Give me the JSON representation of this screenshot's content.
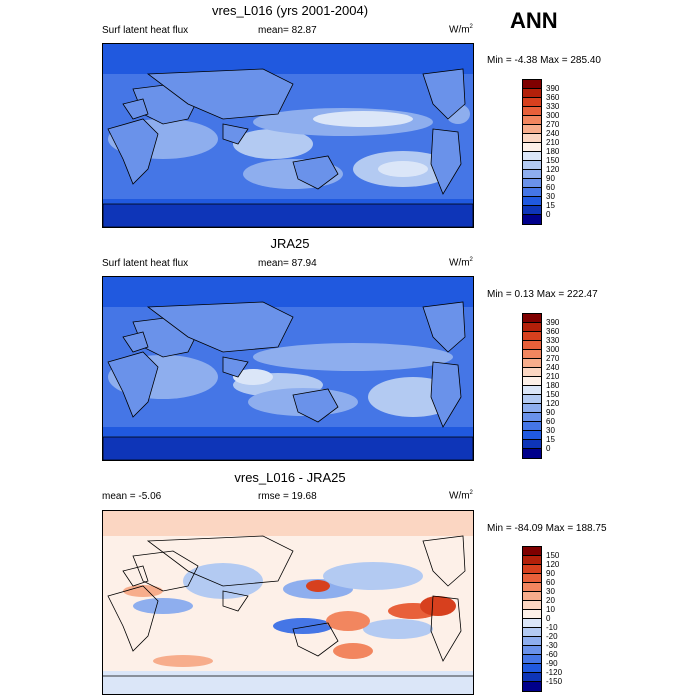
{
  "season": "ANN",
  "panels": [
    {
      "title": "vres_L016 (yrs 2001-2004)",
      "left_label": "Surf latent heat flux",
      "mid_label": "mean=  82.87",
      "units": "W/m",
      "units_sup": "2",
      "minmax": "Min =  -4.38 Max = 285.40",
      "colorbar": {
        "labels": [
          "390",
          "360",
          "330",
          "300",
          "270",
          "240",
          "210",
          "180",
          "150",
          "120",
          "90",
          "60",
          "30",
          "15",
          "0"
        ],
        "colors": [
          "#7f0000",
          "#b3200a",
          "#d7401e",
          "#e8603a",
          "#f2865f",
          "#f7ad8c",
          "#fbd6c2",
          "#fdf0e8",
          "#dbe6f8",
          "#b3caf2",
          "#8eaeee",
          "#6a92ea",
          "#4576e6",
          "#2059df",
          "#0e35b8",
          "#00008b"
        ]
      }
    },
    {
      "title": "JRA25",
      "left_label": "Surf latent heat flux",
      "mid_label": "mean=  87.94",
      "units": "W/m",
      "units_sup": "2",
      "minmax": "Min =   0.13 Max = 222.47",
      "colorbar": {
        "labels": [
          "390",
          "360",
          "330",
          "300",
          "270",
          "240",
          "210",
          "180",
          "150",
          "120",
          "90",
          "60",
          "30",
          "15",
          "0"
        ],
        "colors": [
          "#7f0000",
          "#b3200a",
          "#d7401e",
          "#e8603a",
          "#f2865f",
          "#f7ad8c",
          "#fbd6c2",
          "#fdf0e8",
          "#dbe6f8",
          "#b3caf2",
          "#8eaeee",
          "#6a92ea",
          "#4576e6",
          "#2059df",
          "#0e35b8",
          "#00008b"
        ]
      }
    },
    {
      "title": "vres_L016 - JRA25",
      "left_label": "mean =  -5.06",
      "mid_label": "rmse =  19.68",
      "units": "W/m",
      "units_sup": "2",
      "minmax": "Min = -84.09 Max = 188.75",
      "colorbar": {
        "labels": [
          "150",
          "120",
          "90",
          "60",
          "30",
          "20",
          "10",
          "0",
          "-10",
          "-20",
          "-30",
          "-60",
          "-90",
          "-120",
          "-150"
        ],
        "colors": [
          "#7f0000",
          "#b3200a",
          "#d7401e",
          "#e8603a",
          "#f2865f",
          "#f7ad8c",
          "#fbd6c2",
          "#fdf0e8",
          "#dbe6f8",
          "#b3caf2",
          "#8eaeee",
          "#6a92ea",
          "#4576e6",
          "#2059df",
          "#0e35b8",
          "#00008b"
        ]
      }
    }
  ]
}
